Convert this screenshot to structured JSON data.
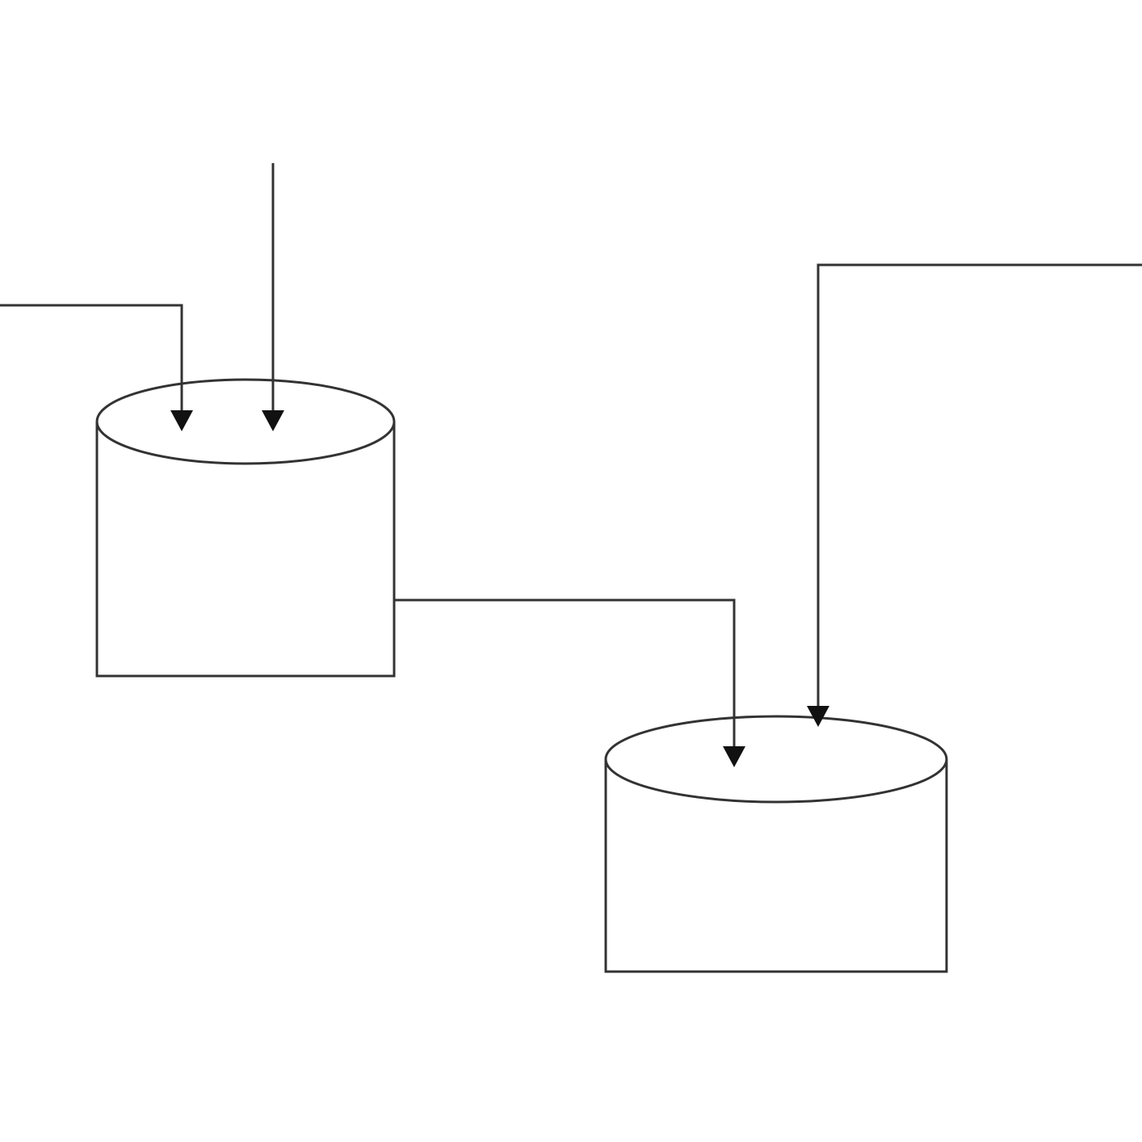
{
  "diagram": {
    "colors": {
      "background": "#ffffff",
      "stroke": "#333333",
      "arrowhead": "#111111"
    },
    "tanks": [
      {
        "id": "tank-left",
        "label": ""
      },
      {
        "id": "tank-right",
        "label": ""
      }
    ],
    "flows": [
      {
        "id": "inflow-left-side",
        "from": "",
        "to": "tank-left"
      },
      {
        "id": "inflow-left-top",
        "from": "",
        "to": "tank-left"
      },
      {
        "id": "transfer-left-to-right",
        "from": "tank-left",
        "to": "tank-right"
      },
      {
        "id": "inflow-right-top",
        "from": "",
        "to": "tank-right"
      }
    ]
  }
}
